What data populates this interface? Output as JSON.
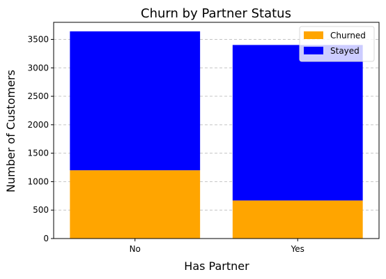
{
  "chart_data": {
    "type": "bar",
    "stacked": true,
    "title": "Churn by Partner Status",
    "xlabel": "Has Partner",
    "ylabel": "Number of Customers",
    "categories": [
      "No",
      "Yes"
    ],
    "series": [
      {
        "name": "Churned",
        "values": [
          1200,
          669
        ],
        "color": "#FFA500"
      },
      {
        "name": "Stayed",
        "values": [
          2441,
          2733
        ],
        "color": "#0000FF"
      }
    ],
    "ylim": [
      0,
      3800
    ],
    "yticks": [
      0,
      500,
      1000,
      1500,
      2000,
      2500,
      3000,
      3500
    ],
    "grid": "y-dashed",
    "legend": "top-right"
  }
}
